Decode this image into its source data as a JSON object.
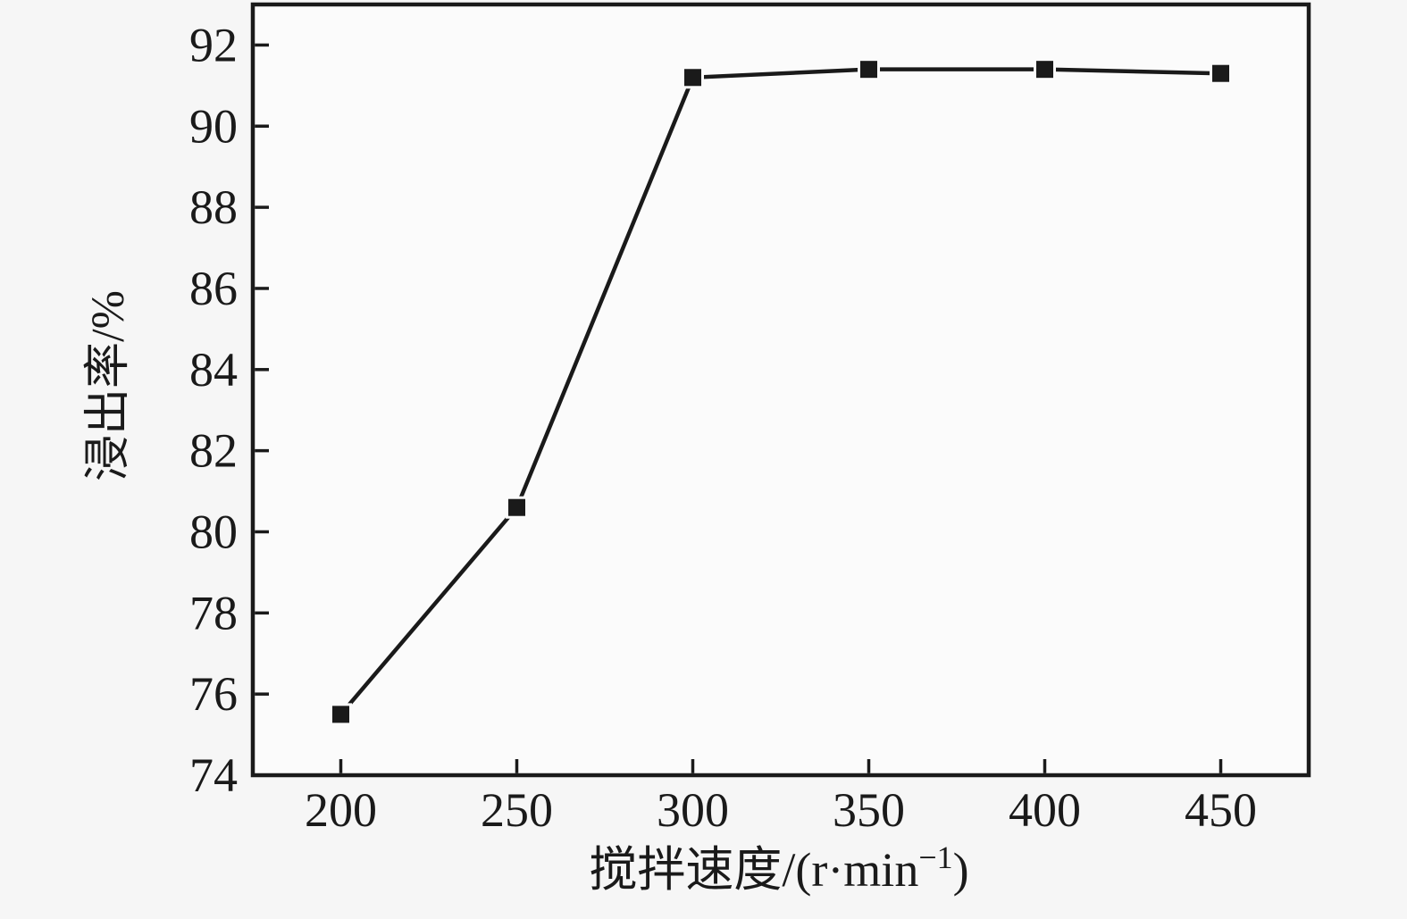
{
  "chart_data": {
    "type": "line",
    "title": "",
    "xlabel": "搅拌速度/(r·min⁻¹)",
    "xlabel_parts": {
      "base": "搅拌速度/(r·min",
      "superscript": "−1",
      "close": ")"
    },
    "ylabel": "浸出率/%",
    "xlim": [
      175,
      475
    ],
    "ylim": [
      74,
      93
    ],
    "x_ticks": [
      200,
      250,
      300,
      350,
      400,
      450
    ],
    "y_ticks": [
      74,
      76,
      78,
      80,
      82,
      84,
      86,
      88,
      90,
      92
    ],
    "grid": false,
    "legend": "none",
    "series": [
      {
        "marker": "filled-square",
        "x": [
          200,
          250,
          300,
          350,
          400,
          450
        ],
        "y": [
          75.5,
          80.6,
          91.2,
          91.4,
          91.4,
          91.3
        ]
      }
    ],
    "colors": {
      "line": "#1a1a1a",
      "marker": "#1a1a1a",
      "axis": "#1a1a1a",
      "text": "#1a1a1a",
      "page_background": "#f6f6f6",
      "plot_background": "#fbfbfb"
    }
  }
}
